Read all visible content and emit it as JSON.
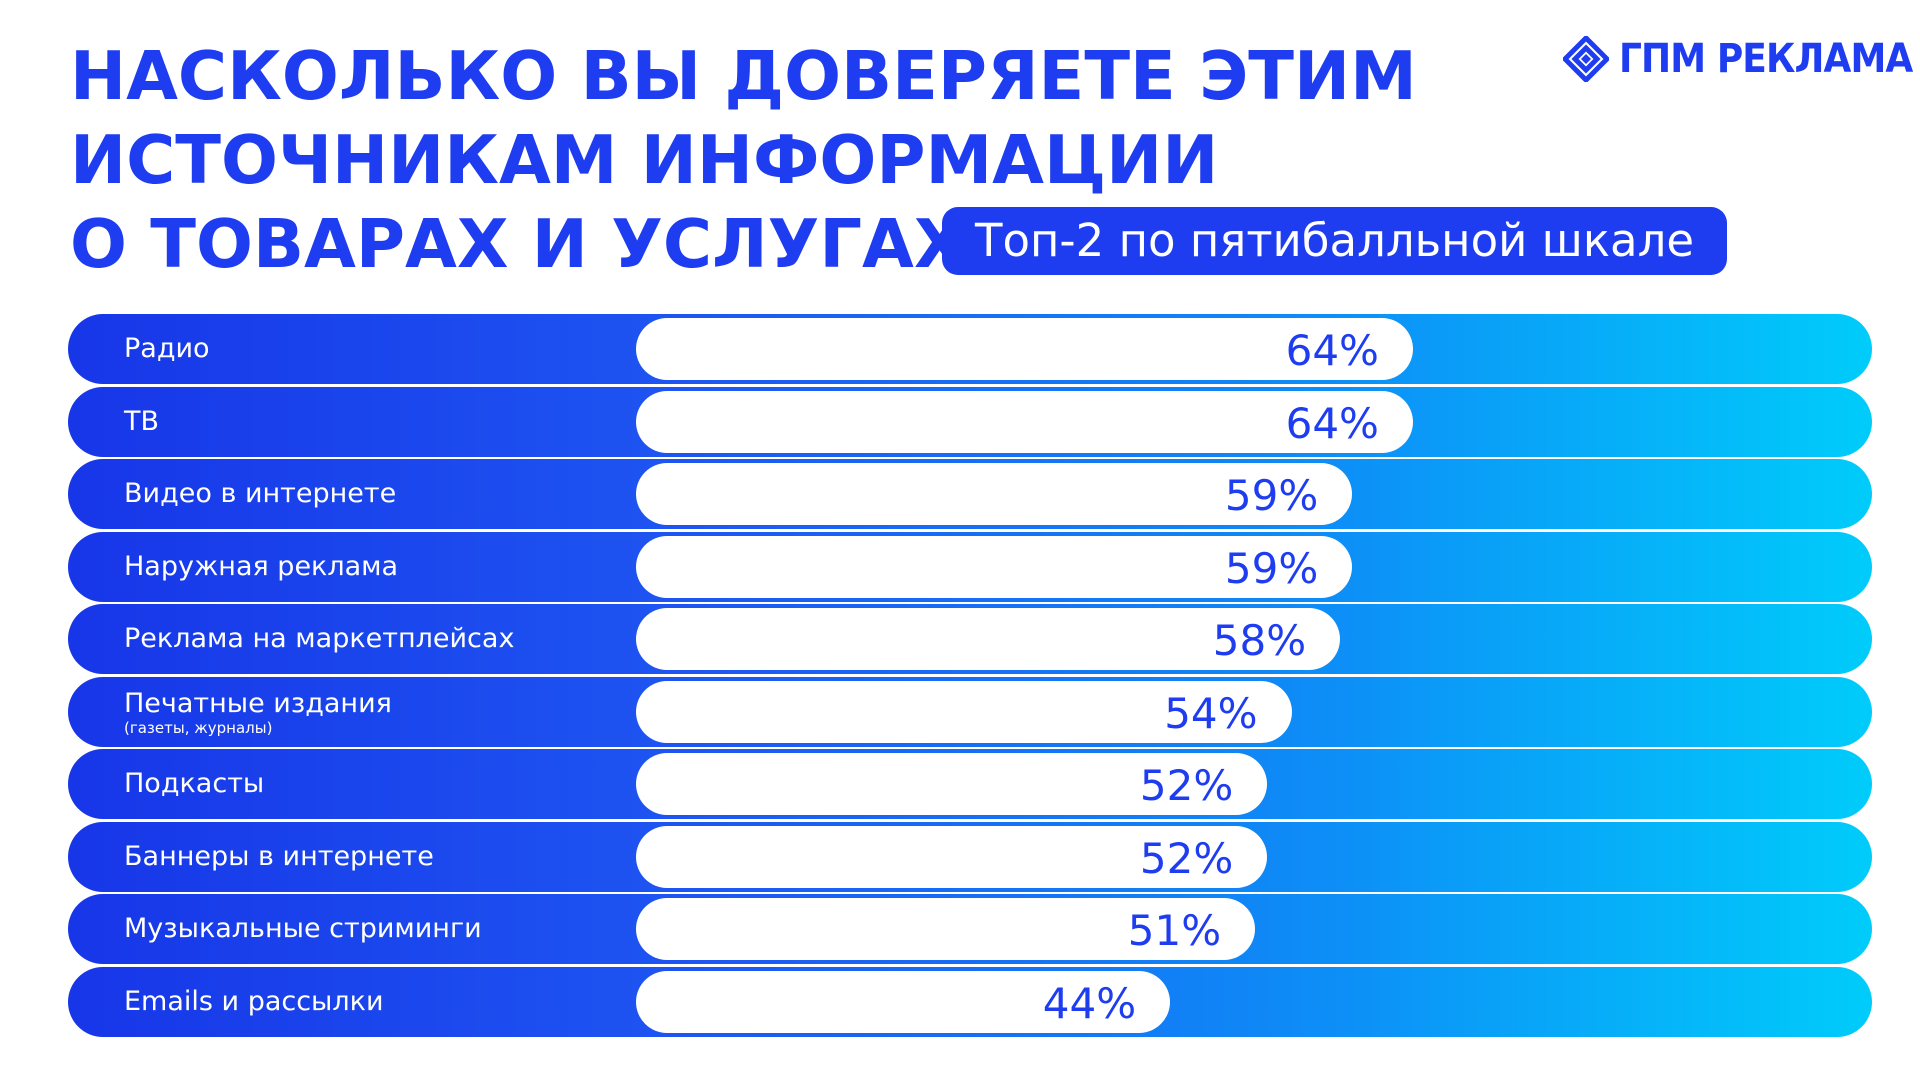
{
  "title_lines": [
    "НАСКОЛЬКО ВЫ ДОВЕРЯЕТЕ ЭТИМ",
    "ИСТОЧНИКАМ ИНФОРМАЦИИ",
    "О ТОВАРАХ И УСЛУГАХ?"
  ],
  "subtitle": "Топ-2 по пятибалльной шкале",
  "logo": {
    "text": "ГПМ РЕКЛАМА",
    "icon": "diamond-logo-icon"
  },
  "colors": {
    "brand": "#1e3df0",
    "gradient_start": "#1736e8",
    "gradient_end": "#00ccfa",
    "bar": "#ffffff"
  },
  "chart_data": {
    "type": "bar",
    "orientation": "horizontal",
    "categories": [
      "Радио",
      "ТВ",
      "Видео в интернете",
      "Наружная реклама",
      "Реклама на маркетплейсах",
      "Печатные издания",
      "Подкасты",
      "Баннеры в интернете",
      "Музыкальные стриминги",
      "Emails и рассылки"
    ],
    "category_notes": [
      "",
      "",
      "",
      "",
      "",
      "(газеты, журналы)",
      "",
      "",
      "",
      ""
    ],
    "values": [
      64,
      64,
      59,
      59,
      58,
      54,
      52,
      52,
      51,
      44
    ],
    "value_labels": [
      "64%",
      "64%",
      "59%",
      "59%",
      "58%",
      "54%",
      "52%",
      "52%",
      "51%",
      "44%"
    ],
    "unit": "%",
    "xlim": [
      0,
      100
    ],
    "title": "НАСКОЛЬКО ВЫ ДОВЕРЯЕТЕ ЭТИМ ИСТОЧНИКАМ ИНФОРМАЦИИ О ТОВАРАХ И УСЛУГАХ?",
    "subtitle": "Топ-2 по пятибалльной шкале",
    "grid": false,
    "legend": "none"
  }
}
